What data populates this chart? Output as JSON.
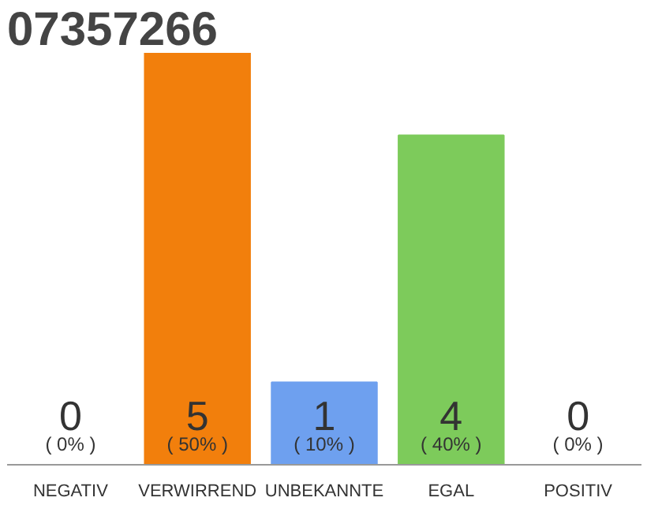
{
  "chart_data": {
    "type": "bar",
    "title": "07357266",
    "categories": [
      "NEGATIV",
      "VERWIRREND",
      "UNBEKANNTE",
      "EGAL",
      "POSITIV"
    ],
    "values": [
      0,
      5,
      1,
      4,
      0
    ],
    "colors": [
      "#cccccc",
      "#f27f0c",
      "#6ea0ef",
      "#7dcb5b",
      "#cccccc"
    ],
    "ylim": [
      0,
      5
    ],
    "value_labels": [
      "0\n( 0% )",
      "5\n( 50% )",
      "1\n( 10% )",
      "4\n( 40% )",
      "0\n( 0% )"
    ],
    "tick_labels": "x"
  }
}
